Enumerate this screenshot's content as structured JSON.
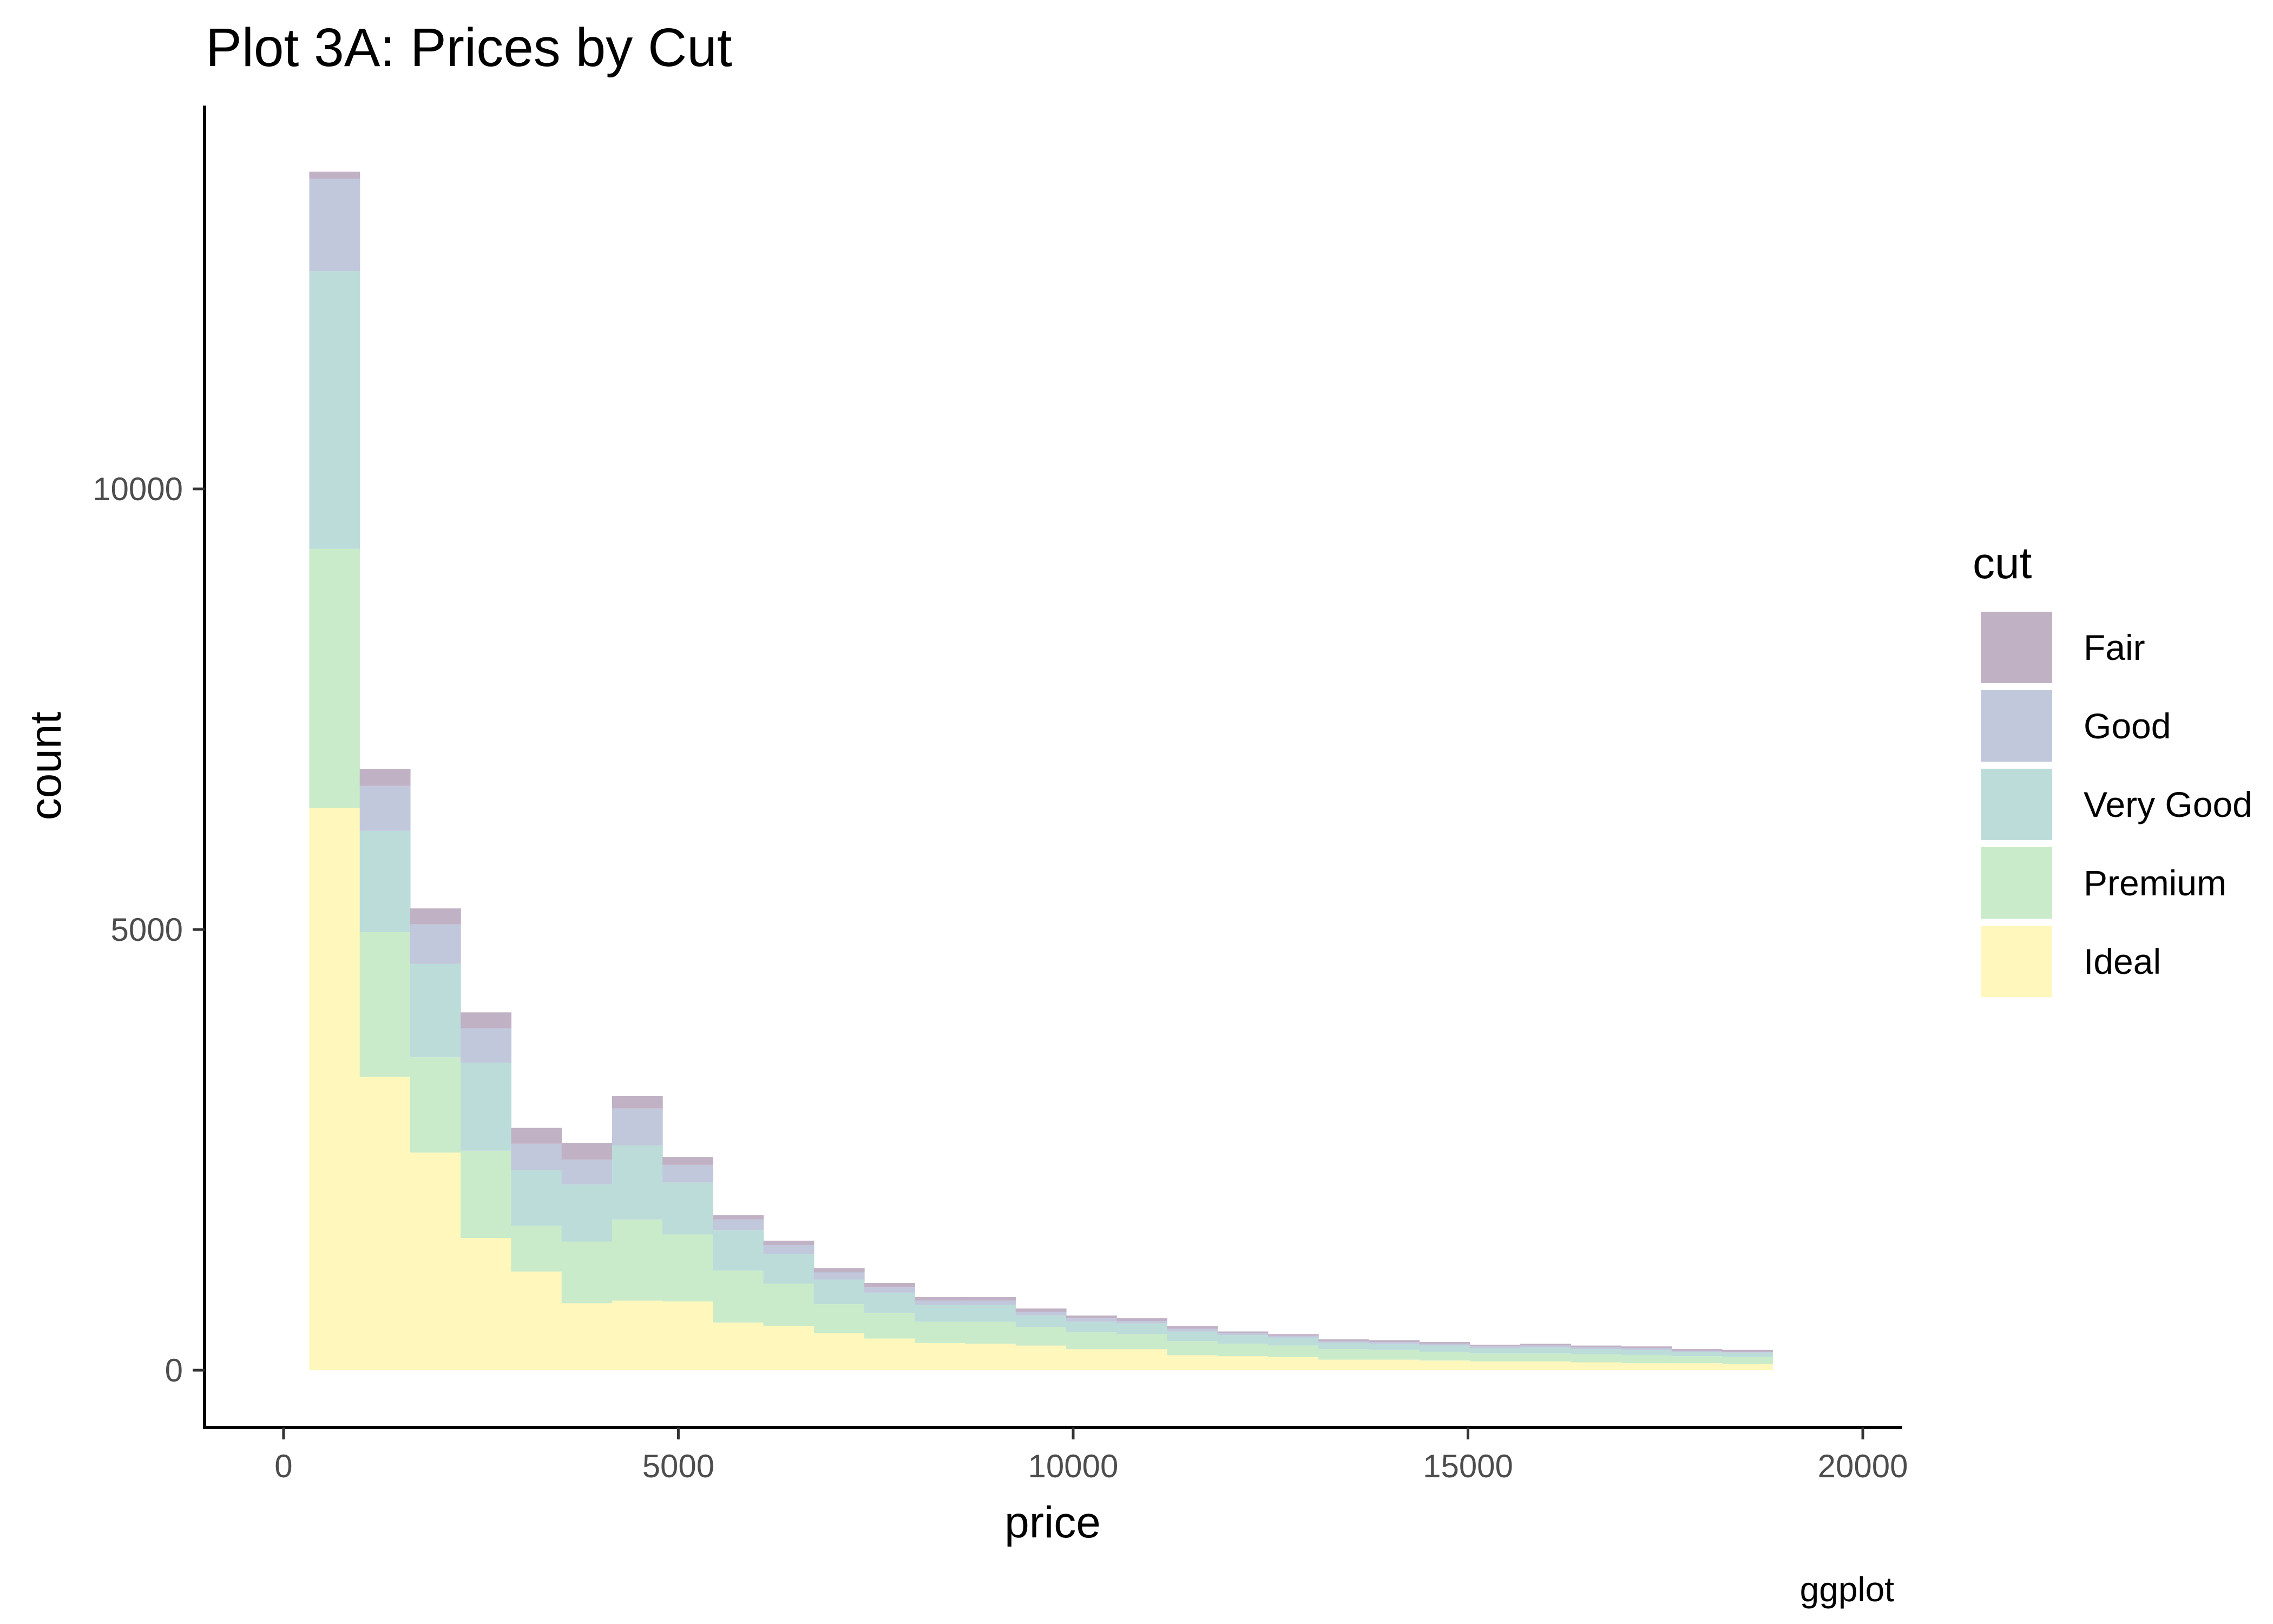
{
  "chart_data": {
    "type": "bar",
    "subtype": "stacked-histogram",
    "title": "Plot 3A: Prices by Cut",
    "xlabel": "price",
    "ylabel": "count",
    "caption": "ggplot",
    "xlim": [
      -1000,
      20500
    ],
    "ylim": [
      -650,
      14350
    ],
    "x_ticks": [
      0,
      5000,
      10000,
      15000,
      20000
    ],
    "x_tick_labels": [
      "0",
      "5000",
      "10000",
      "15000",
      "20000"
    ],
    "y_ticks": [
      0,
      5000,
      10000
    ],
    "y_tick_labels": [
      "0",
      "5000",
      "10000"
    ],
    "grid": false,
    "legend": {
      "title": "cut",
      "position": "right"
    },
    "bin_edges": [
      326,
      965,
      1604,
      2243,
      2882,
      3521,
      4160,
      4799,
      5438,
      6077,
      6716,
      7355,
      7994,
      8633,
      9272,
      9911,
      10550,
      11189,
      11828,
      12467,
      13106,
      13745,
      14384,
      15023,
      15662,
      16301,
      16940,
      17579,
      18218,
      18857
    ],
    "series": [
      {
        "name": "Ideal",
        "color": "#fff7bc",
        "values": [
          6380,
          3330,
          2470,
          1500,
          1120,
          760,
          790,
          780,
          540,
          500,
          420,
          360,
          310,
          300,
          280,
          240,
          240,
          170,
          160,
          150,
          120,
          120,
          110,
          100,
          100,
          90,
          80,
          80,
          70
        ]
      },
      {
        "name": "Premium",
        "color": "#c9ebc9",
        "values": [
          2940,
          1640,
          1080,
          990,
          520,
          700,
          920,
          760,
          590,
          480,
          330,
          290,
          240,
          250,
          210,
          190,
          170,
          160,
          140,
          130,
          120,
          110,
          100,
          90,
          90,
          90,
          90,
          80,
          80
        ]
      },
      {
        "name": "Very Good",
        "color": "#bcdcda",
        "values": [
          3150,
          1150,
          1060,
          1000,
          630,
          650,
          840,
          590,
          460,
          340,
          280,
          230,
          190,
          190,
          130,
          120,
          120,
          110,
          100,
          90,
          70,
          70,
          70,
          60,
          70,
          60,
          60,
          50,
          50
        ]
      },
      {
        "name": "Good",
        "color": "#c2c8dc",
        "values": [
          1050,
          510,
          450,
          390,
          300,
          280,
          420,
          200,
          120,
          100,
          80,
          60,
          50,
          50,
          40,
          40,
          30,
          30,
          20,
          20,
          20,
          20,
          20,
          20,
          20,
          20,
          20,
          10,
          10
        ]
      },
      {
        "name": "Fair",
        "color": "#c0b1c5",
        "values": [
          80,
          190,
          180,
          180,
          180,
          190,
          140,
          90,
          50,
          50,
          50,
          50,
          40,
          40,
          40,
          30,
          30,
          30,
          20,
          20,
          20,
          20,
          20,
          20,
          20,
          20,
          20,
          20,
          20
        ]
      }
    ]
  }
}
